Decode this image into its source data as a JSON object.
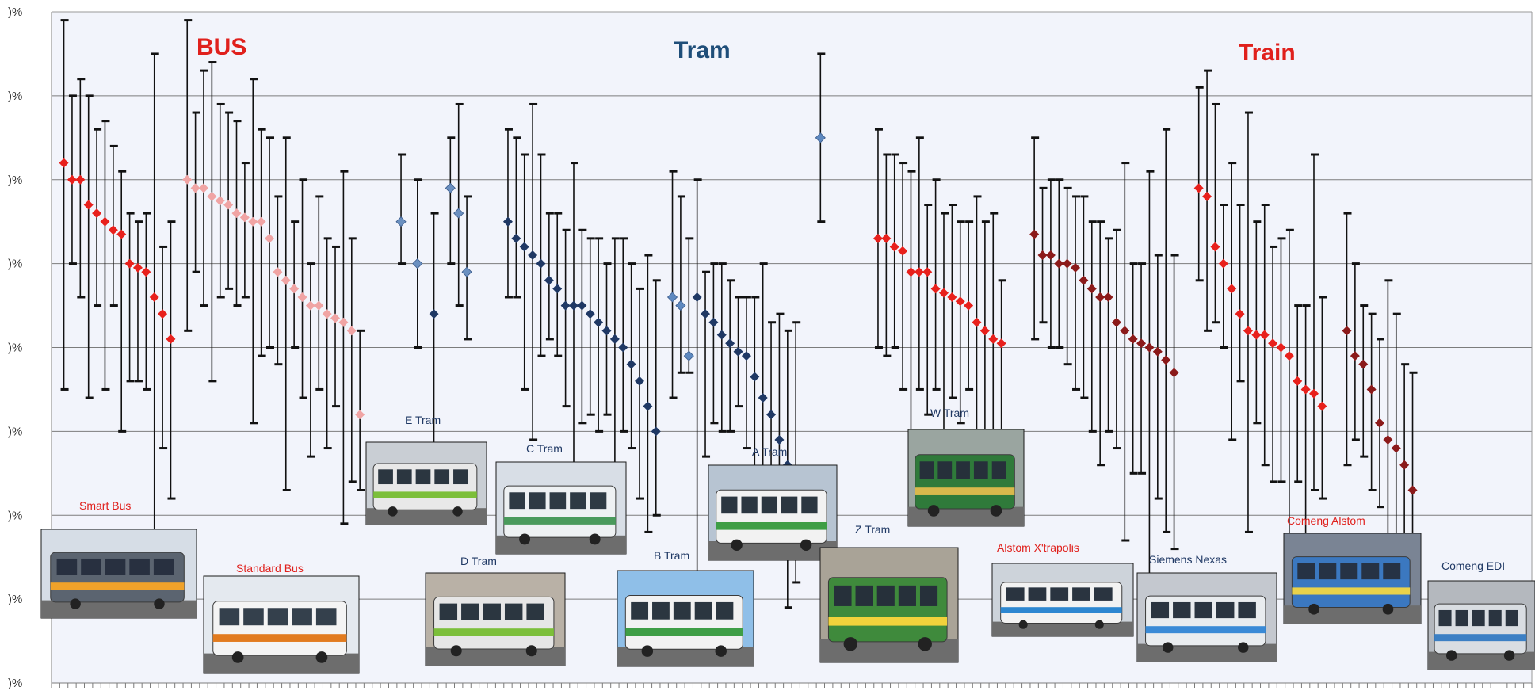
{
  "chart_data": {
    "type": "scatter",
    "error_bars": true,
    "title": "",
    "xlabel": "",
    "ylabel": "",
    "ylim": [
      0,
      8
    ],
    "y_tick_labels": [
      ")%",
      ")%",
      ")%",
      ")%",
      ")%",
      ")%",
      ")%",
      ")%",
      ")%"
    ],
    "grid": true,
    "group_labels": [
      {
        "text": "BUS",
        "color": "#e0201c"
      },
      {
        "text": "Tram",
        "color": "#1f4e79"
      },
      {
        "text": "Train",
        "color": "#e0201c"
      }
    ],
    "vehicle_labels": [
      {
        "text": "Smart Bus",
        "color": "#e0201c"
      },
      {
        "text": "Standard  Bus",
        "color": "#e0201c"
      },
      {
        "text": "E Tram",
        "color": "#1f3864"
      },
      {
        "text": "C Tram",
        "color": "#1f3864"
      },
      {
        "text": "D Tram",
        "color": "#1f3864"
      },
      {
        "text": "B Tram",
        "color": "#1f3864"
      },
      {
        "text": "A Tram",
        "color": "#1f3864"
      },
      {
        "text": "Z Tram",
        "color": "#1f3864"
      },
      {
        "text": "W Tram",
        "color": "#1f3864"
      },
      {
        "text": "Alstom X'trapolis",
        "color": "#e0201c"
      },
      {
        "text": "Siemens  Nexas",
        "color": "#1f3864"
      },
      {
        "text": "Comeng Alstom",
        "color": "#e0201c"
      },
      {
        "text": "Comeng EDI",
        "color": "#1f3864"
      }
    ],
    "series": [
      {
        "color": "#e8201c",
        "points": [
          {
            "x": 1,
            "y": 6.2,
            "lo": 3.5,
            "hi": 7.9
          },
          {
            "x": 2,
            "y": 6.0,
            "lo": 5.0,
            "hi": 7.0
          },
          {
            "x": 3,
            "y": 6.0,
            "lo": 4.6,
            "hi": 7.2
          },
          {
            "x": 4,
            "y": 5.7,
            "lo": 3.4,
            "hi": 7.0
          },
          {
            "x": 5,
            "y": 5.6,
            "lo": 4.5,
            "hi": 6.6
          },
          {
            "x": 6,
            "y": 5.5,
            "lo": 3.5,
            "hi": 6.7
          },
          {
            "x": 7,
            "y": 5.4,
            "lo": 4.5,
            "hi": 6.4
          },
          {
            "x": 8,
            "y": 5.35,
            "lo": 3.0,
            "hi": 6.1
          },
          {
            "x": 9,
            "y": 5.0,
            "lo": 3.6,
            "hi": 5.6
          },
          {
            "x": 10,
            "y": 4.95,
            "lo": 3.6,
            "hi": 5.5
          },
          {
            "x": 11,
            "y": 4.9,
            "lo": 3.5,
            "hi": 5.6
          },
          {
            "x": 12,
            "y": 4.6,
            "lo": 1.0,
            "hi": 7.5
          },
          {
            "x": 13,
            "y": 4.4,
            "lo": 2.8,
            "hi": 5.2
          },
          {
            "x": 14,
            "y": 4.1,
            "lo": 2.2,
            "hi": 5.5
          }
        ]
      },
      {
        "color": "#f0a4a4",
        "points": [
          {
            "x": 16,
            "y": 6.0,
            "lo": 4.2,
            "hi": 7.9
          },
          {
            "x": 17,
            "y": 5.9,
            "lo": 4.9,
            "hi": 6.8
          },
          {
            "x": 18,
            "y": 5.9,
            "lo": 4.5,
            "hi": 7.3
          },
          {
            "x": 19,
            "y": 5.8,
            "lo": 3.6,
            "hi": 7.4
          },
          {
            "x": 20,
            "y": 5.75,
            "lo": 4.6,
            "hi": 6.9
          },
          {
            "x": 21,
            "y": 5.7,
            "lo": 4.7,
            "hi": 6.8
          },
          {
            "x": 22,
            "y": 5.6,
            "lo": 4.5,
            "hi": 6.7
          },
          {
            "x": 23,
            "y": 5.55,
            "lo": 4.6,
            "hi": 6.2
          },
          {
            "x": 24,
            "y": 5.5,
            "lo": 3.1,
            "hi": 7.2
          },
          {
            "x": 25,
            "y": 5.5,
            "lo": 3.9,
            "hi": 6.6
          },
          {
            "x": 26,
            "y": 5.3,
            "lo": 4.0,
            "hi": 6.5
          },
          {
            "x": 27,
            "y": 4.9,
            "lo": 3.8,
            "hi": 5.8
          },
          {
            "x": 28,
            "y": 4.8,
            "lo": 2.3,
            "hi": 6.5
          },
          {
            "x": 29,
            "y": 4.7,
            "lo": 4.0,
            "hi": 5.5
          },
          {
            "x": 30,
            "y": 4.6,
            "lo": 3.4,
            "hi": 6.0
          },
          {
            "x": 31,
            "y": 4.5,
            "lo": 2.7,
            "hi": 5.0
          },
          {
            "x": 32,
            "y": 4.5,
            "lo": 3.5,
            "hi": 5.8
          },
          {
            "x": 33,
            "y": 4.4,
            "lo": 2.8,
            "hi": 5.3
          },
          {
            "x": 34,
            "y": 4.35,
            "lo": 3.3,
            "hi": 5.2
          },
          {
            "x": 35,
            "y": 4.3,
            "lo": 1.9,
            "hi": 6.1
          },
          {
            "x": 36,
            "y": 4.2,
            "lo": 2.4,
            "hi": 5.3
          },
          {
            "x": 37,
            "y": 3.2,
            "lo": 2.3,
            "hi": 4.2
          }
        ]
      },
      {
        "color": "#6b90c0",
        "points": [
          {
            "x": 42,
            "y": 5.5,
            "lo": 5.0,
            "hi": 6.3
          },
          {
            "x": 44,
            "y": 5.0,
            "lo": 4.0,
            "hi": 6.0
          },
          {
            "x": 48,
            "y": 5.9,
            "lo": 5.0,
            "hi": 6.5
          },
          {
            "x": 49,
            "y": 5.6,
            "lo": 4.5,
            "hi": 6.9
          },
          {
            "x": 50,
            "y": 4.9,
            "lo": 4.1,
            "hi": 5.8
          }
        ]
      },
      {
        "color": "#1f3864",
        "points": [
          {
            "x": 46,
            "y": 4.4,
            "lo": 2.2,
            "hi": 5.6
          },
          {
            "x": 55,
            "y": 5.5,
            "lo": 4.6,
            "hi": 6.6
          },
          {
            "x": 56,
            "y": 5.3,
            "lo": 4.6,
            "hi": 6.5
          },
          {
            "x": 57,
            "y": 5.2,
            "lo": 3.5,
            "hi": 6.3
          },
          {
            "x": 58,
            "y": 5.1,
            "lo": 2.9,
            "hi": 6.9
          },
          {
            "x": 59,
            "y": 5.0,
            "lo": 3.9,
            "hi": 6.3
          },
          {
            "x": 60,
            "y": 4.8,
            "lo": 4.1,
            "hi": 5.6
          },
          {
            "x": 61,
            "y": 4.7,
            "lo": 3.9,
            "hi": 5.6
          },
          {
            "x": 62,
            "y": 4.5,
            "lo": 3.3,
            "hi": 5.4
          },
          {
            "x": 63,
            "y": 4.5,
            "lo": 2.1,
            "hi": 6.2
          },
          {
            "x": 64,
            "y": 4.5,
            "lo": 3.1,
            "hi": 5.4
          },
          {
            "x": 65,
            "y": 4.4,
            "lo": 3.2,
            "hi": 5.3
          },
          {
            "x": 66,
            "y": 4.3,
            "lo": 3.0,
            "hi": 5.3
          },
          {
            "x": 67,
            "y": 4.2,
            "lo": 3.2,
            "hi": 5.0
          },
          {
            "x": 68,
            "y": 4.1,
            "lo": 2.0,
            "hi": 5.3
          },
          {
            "x": 69,
            "y": 4.0,
            "lo": 3.0,
            "hi": 5.3
          },
          {
            "x": 70,
            "y": 3.8,
            "lo": 2.8,
            "hi": 5.0
          },
          {
            "x": 71,
            "y": 3.6,
            "lo": 2.2,
            "hi": 4.7
          },
          {
            "x": 72,
            "y": 3.3,
            "lo": 1.8,
            "hi": 5.1
          },
          {
            "x": 73,
            "y": 3.0,
            "lo": 2.0,
            "hi": 4.8
          },
          {
            "x": 78,
            "y": 4.6,
            "lo": 1.0,
            "hi": 6.0
          },
          {
            "x": 79,
            "y": 4.4,
            "lo": 2.7,
            "hi": 4.9
          },
          {
            "x": 80,
            "y": 4.3,
            "lo": 3.1,
            "hi": 5.0
          },
          {
            "x": 81,
            "y": 4.15,
            "lo": 3.0,
            "hi": 5.0
          },
          {
            "x": 82,
            "y": 4.05,
            "lo": 3.0,
            "hi": 4.8
          },
          {
            "x": 83,
            "y": 3.95,
            "lo": 3.3,
            "hi": 4.6
          },
          {
            "x": 84,
            "y": 3.9,
            "lo": 2.8,
            "hi": 4.6
          },
          {
            "x": 85,
            "y": 3.65,
            "lo": 2.3,
            "hi": 4.6
          },
          {
            "x": 86,
            "y": 3.4,
            "lo": 2.1,
            "hi": 5.0
          },
          {
            "x": 87,
            "y": 3.2,
            "lo": 1.8,
            "hi": 4.3
          },
          {
            "x": 88,
            "y": 2.9,
            "lo": 1.5,
            "hi": 4.4
          },
          {
            "x": 89,
            "y": 2.6,
            "lo": 0.9,
            "hi": 4.2
          },
          {
            "x": 90,
            "y": 2.5,
            "lo": 1.2,
            "hi": 4.3
          }
        ]
      },
      {
        "color": "#5e89c0",
        "points": [
          {
            "x": 75,
            "y": 4.6,
            "lo": 3.4,
            "hi": 6.1
          },
          {
            "x": 76,
            "y": 4.5,
            "lo": 3.7,
            "hi": 5.8
          },
          {
            "x": 77,
            "y": 3.9,
            "lo": 3.7,
            "hi": 5.3
          },
          {
            "x": 93,
            "y": 6.5,
            "lo": 5.5,
            "hi": 7.5
          }
        ]
      },
      {
        "color": "#e8201c",
        "points": [
          {
            "x": 100,
            "y": 5.3,
            "lo": 4.0,
            "hi": 6.6
          },
          {
            "x": 101,
            "y": 5.3,
            "lo": 3.9,
            "hi": 6.3
          },
          {
            "x": 102,
            "y": 5.2,
            "lo": 4.0,
            "hi": 6.3
          },
          {
            "x": 103,
            "y": 5.15,
            "lo": 3.5,
            "hi": 6.2
          },
          {
            "x": 104,
            "y": 4.9,
            "lo": 3.0,
            "hi": 6.1
          },
          {
            "x": 105,
            "y": 4.9,
            "lo": 3.5,
            "hi": 6.5
          },
          {
            "x": 106,
            "y": 4.9,
            "lo": 3.2,
            "hi": 5.7
          },
          {
            "x": 107,
            "y": 4.7,
            "lo": 3.5,
            "hi": 6.0
          },
          {
            "x": 108,
            "y": 4.65,
            "lo": 3.0,
            "hi": 5.6
          },
          {
            "x": 109,
            "y": 4.6,
            "lo": 3.4,
            "hi": 5.7
          },
          {
            "x": 110,
            "y": 4.55,
            "lo": 3.1,
            "hi": 5.5
          },
          {
            "x": 111,
            "y": 4.5,
            "lo": 3.5,
            "hi": 5.5
          },
          {
            "x": 112,
            "y": 4.3,
            "lo": 2.6,
            "hi": 5.8
          },
          {
            "x": 113,
            "y": 4.2,
            "lo": 2.5,
            "hi": 5.5
          },
          {
            "x": 114,
            "y": 4.1,
            "lo": 2.2,
            "hi": 5.6
          },
          {
            "x": 115,
            "y": 4.05,
            "lo": 2.8,
            "hi": 4.8
          }
        ]
      },
      {
        "color": "#8b1a1a",
        "points": [
          {
            "x": 119,
            "y": 5.35,
            "lo": 4.1,
            "hi": 6.5
          },
          {
            "x": 120,
            "y": 5.1,
            "lo": 4.3,
            "hi": 5.9
          },
          {
            "x": 121,
            "y": 5.1,
            "lo": 4.0,
            "hi": 6.0
          },
          {
            "x": 122,
            "y": 5.0,
            "lo": 4.0,
            "hi": 6.0
          },
          {
            "x": 123,
            "y": 5.0,
            "lo": 3.8,
            "hi": 5.9
          },
          {
            "x": 124,
            "y": 4.95,
            "lo": 3.5,
            "hi": 5.8
          },
          {
            "x": 125,
            "y": 4.8,
            "lo": 3.4,
            "hi": 5.8
          },
          {
            "x": 126,
            "y": 4.7,
            "lo": 3.0,
            "hi": 5.5
          },
          {
            "x": 127,
            "y": 4.6,
            "lo": 2.6,
            "hi": 5.5
          },
          {
            "x": 128,
            "y": 4.6,
            "lo": 3.0,
            "hi": 5.3
          },
          {
            "x": 129,
            "y": 4.3,
            "lo": 2.8,
            "hi": 5.4
          },
          {
            "x": 130,
            "y": 4.2,
            "lo": 1.7,
            "hi": 6.2
          },
          {
            "x": 131,
            "y": 4.1,
            "lo": 2.5,
            "hi": 5.0
          },
          {
            "x": 132,
            "y": 4.05,
            "lo": 2.5,
            "hi": 5.0
          },
          {
            "x": 133,
            "y": 4.0,
            "lo": 1.1,
            "hi": 6.1
          },
          {
            "x": 134,
            "y": 3.95,
            "lo": 2.2,
            "hi": 5.1
          },
          {
            "x": 135,
            "y": 3.85,
            "lo": 1.8,
            "hi": 6.6
          },
          {
            "x": 136,
            "y": 3.7,
            "lo": 1.6,
            "hi": 5.1
          }
        ]
      },
      {
        "color": "#e8201c",
        "points": [
          {
            "x": 139,
            "y": 5.9,
            "lo": 4.8,
            "hi": 7.1
          },
          {
            "x": 140,
            "y": 5.8,
            "lo": 4.2,
            "hi": 7.3
          },
          {
            "x": 141,
            "y": 5.2,
            "lo": 4.3,
            "hi": 6.9
          },
          {
            "x": 142,
            "y": 5.0,
            "lo": 4.0,
            "hi": 5.7
          },
          {
            "x": 143,
            "y": 4.7,
            "lo": 2.9,
            "hi": 6.2
          },
          {
            "x": 144,
            "y": 4.4,
            "lo": 3.6,
            "hi": 5.7
          },
          {
            "x": 145,
            "y": 4.2,
            "lo": 1.8,
            "hi": 6.8
          },
          {
            "x": 146,
            "y": 4.15,
            "lo": 3.1,
            "hi": 5.5
          },
          {
            "x": 147,
            "y": 4.15,
            "lo": 2.6,
            "hi": 5.7
          },
          {
            "x": 148,
            "y": 4.05,
            "lo": 2.4,
            "hi": 5.2
          },
          {
            "x": 149,
            "y": 4.0,
            "lo": 2.4,
            "hi": 5.3
          },
          {
            "x": 150,
            "y": 3.9,
            "lo": 1.6,
            "hi": 5.4
          },
          {
            "x": 151,
            "y": 3.6,
            "lo": 2.4,
            "hi": 4.5
          },
          {
            "x": 152,
            "y": 3.5,
            "lo": 1.6,
            "hi": 4.5
          },
          {
            "x": 153,
            "y": 3.45,
            "lo": 2.3,
            "hi": 6.3
          },
          {
            "x": 154,
            "y": 3.3,
            "lo": 2.2,
            "hi": 4.6
          }
        ]
      },
      {
        "color": "#8b1a1a",
        "points": [
          {
            "x": 157,
            "y": 4.2,
            "lo": 2.6,
            "hi": 5.6
          },
          {
            "x": 158,
            "y": 3.9,
            "lo": 2.9,
            "hi": 5.0
          },
          {
            "x": 159,
            "y": 3.8,
            "lo": 2.7,
            "hi": 4.5
          },
          {
            "x": 160,
            "y": 3.5,
            "lo": 2.3,
            "hi": 4.4
          },
          {
            "x": 161,
            "y": 3.1,
            "lo": 2.1,
            "hi": 4.1
          },
          {
            "x": 162,
            "y": 2.9,
            "lo": 1.3,
            "hi": 4.8
          },
          {
            "x": 163,
            "y": 2.8,
            "lo": 1.5,
            "hi": 4.4
          },
          {
            "x": 164,
            "y": 2.6,
            "lo": 1.0,
            "hi": 3.8
          },
          {
            "x": 165,
            "y": 2.3,
            "lo": 0.9,
            "hi": 3.7
          }
        ]
      }
    ]
  },
  "photos": [
    {
      "label": "Smart Bus",
      "sky": "#d6dde6",
      "body": "#5b6470",
      "stripe": "#f0a22a",
      "window": "#283040"
    },
    {
      "label": "Standard  Bus",
      "sky": "#e4e9ef",
      "body": "#f4f4f4",
      "stripe": "#e27b1e",
      "window": "#34404c"
    },
    {
      "label": "E Tram",
      "sky": "#c9ced4",
      "body": "#e8e8e8",
      "stripe": "#7cbf3a",
      "window": "#2b3640"
    },
    {
      "label": "C Tram",
      "sky": "#d8dee6",
      "body": "#eef1f3",
      "stripe": "#4a9a5c",
      "window": "#2e3a44"
    },
    {
      "label": "D Tram",
      "sky": "#b9b1a6",
      "body": "#e6e6e6",
      "stripe": "#7cbf3a",
      "window": "#2b3640"
    },
    {
      "label": "B Tram",
      "sky": "#8fbfe8",
      "body": "#f2f2f2",
      "stripe": "#3f9e45",
      "window": "#2b3640"
    },
    {
      "label": "A Tram",
      "sky": "#b7c4d2",
      "body": "#f2f2f2",
      "stripe": "#3f9e45",
      "window": "#2b3640"
    },
    {
      "label": "Z Tram",
      "sky": "#a9a397",
      "body": "#3f8a3c",
      "stripe": "#f2d23c",
      "window": "#26303a"
    },
    {
      "label": "W Tram",
      "sky": "#9aa5a0",
      "body": "#2f7a3a",
      "stripe": "#d8b84c",
      "window": "#26303a"
    },
    {
      "label": "Alstom X'trapolis",
      "sky": "#cdd3da",
      "body": "#f2f2f2",
      "stripe": "#2d87d0",
      "window": "#2a3440"
    },
    {
      "label": "Siemens  Nexas",
      "sky": "#c4c8cf",
      "body": "#e9ecef",
      "stripe": "#3a8ad6",
      "window": "#2a3440"
    },
    {
      "label": "Comeng Alstom",
      "sky": "#7a8494",
      "body": "#3b78c0",
      "stripe": "#e9d24a",
      "window": "#263244"
    },
    {
      "label": "Comeng EDI",
      "sky": "#b4b8be",
      "body": "#d9dde2",
      "stripe": "#3b7fc4",
      "window": "#2a3440"
    }
  ]
}
